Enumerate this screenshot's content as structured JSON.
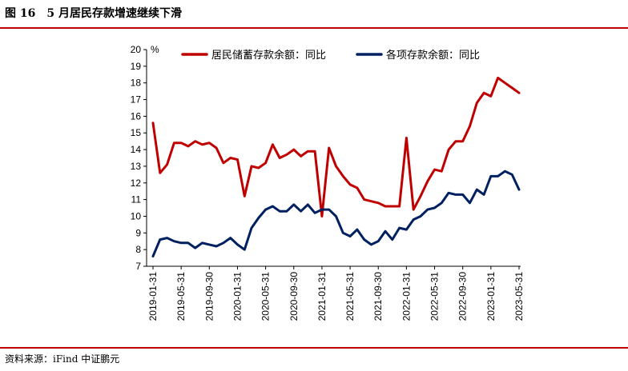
{
  "figure": {
    "number": "图 16",
    "title": "5 月居民存款增速继续下滑",
    "source": "资料来源：iFind 中证鹏元"
  },
  "chart_data": {
    "type": "line",
    "title": "",
    "xlabel": "",
    "ylabel": "%",
    "ylim": [
      7,
      20
    ],
    "yticks": [
      7,
      8,
      9,
      10,
      11,
      12,
      13,
      14,
      15,
      16,
      17,
      18,
      19,
      20
    ],
    "grid": false,
    "legend": "top",
    "x": [
      "2019-01-31",
      "2019-02-28",
      "2019-03-31",
      "2019-04-30",
      "2019-05-31",
      "2019-06-30",
      "2019-07-31",
      "2019-08-31",
      "2019-09-30",
      "2019-10-31",
      "2019-11-30",
      "2019-12-31",
      "2020-01-31",
      "2020-02-29",
      "2020-03-31",
      "2020-04-30",
      "2020-05-31",
      "2020-06-30",
      "2020-07-31",
      "2020-08-31",
      "2020-09-30",
      "2020-10-31",
      "2020-11-30",
      "2020-12-31",
      "2021-01-31",
      "2021-02-28",
      "2021-03-31",
      "2021-04-30",
      "2021-05-31",
      "2021-06-30",
      "2021-07-31",
      "2021-08-31",
      "2021-09-30",
      "2021-10-31",
      "2021-11-30",
      "2021-12-31",
      "2022-01-31",
      "2022-02-28",
      "2022-03-31",
      "2022-04-30",
      "2022-05-31",
      "2022-06-30",
      "2022-07-31",
      "2022-08-31",
      "2022-09-30",
      "2022-10-31",
      "2022-11-30",
      "2022-12-31",
      "2023-01-31",
      "2023-02-28",
      "2023-03-31",
      "2023-04-30",
      "2023-05-31"
    ],
    "xticks": [
      "2019-01-31",
      "2019-05-31",
      "2019-09-30",
      "2020-01-31",
      "2020-05-31",
      "2020-09-30",
      "2021-01-31",
      "2021-05-31",
      "2021-09-30",
      "2022-01-31",
      "2022-05-31",
      "2022-09-30",
      "2023-01-31",
      "2023-05-31"
    ],
    "series": [
      {
        "name": "居民储蓄存款余额：同比",
        "color": "#c00000",
        "values": [
          15.6,
          12.6,
          13.1,
          14.4,
          14.4,
          14.2,
          14.5,
          14.3,
          14.4,
          14.1,
          13.2,
          13.5,
          13.4,
          11.2,
          13.0,
          12.9,
          13.2,
          14.3,
          13.5,
          13.7,
          14.0,
          13.6,
          13.9,
          13.9,
          10.0,
          14.1,
          13.0,
          12.4,
          11.9,
          11.7,
          11.0,
          10.9,
          10.8,
          10.6,
          10.6,
          10.6,
          14.7,
          10.4,
          11.2,
          12.1,
          12.8,
          12.7,
          14.0,
          14.5,
          14.5,
          15.4,
          16.8,
          17.4,
          17.2,
          18.3,
          18.0,
          17.7,
          17.4
        ]
      },
      {
        "name": "各项存款余额：同比",
        "color": "#002060",
        "values": [
          7.6,
          8.6,
          8.7,
          8.5,
          8.4,
          8.4,
          8.1,
          8.4,
          8.3,
          8.2,
          8.4,
          8.7,
          8.3,
          8.0,
          9.3,
          9.9,
          10.4,
          10.6,
          10.3,
          10.3,
          10.7,
          10.3,
          10.7,
          10.2,
          10.4,
          10.4,
          10.0,
          9.0,
          8.8,
          9.2,
          8.6,
          8.3,
          8.5,
          9.1,
          8.6,
          9.3,
          9.2,
          9.8,
          10.0,
          10.4,
          10.5,
          10.8,
          11.4,
          11.3,
          11.3,
          10.8,
          11.6,
          11.3,
          12.4,
          12.4,
          12.7,
          12.5,
          11.6
        ]
      }
    ]
  }
}
